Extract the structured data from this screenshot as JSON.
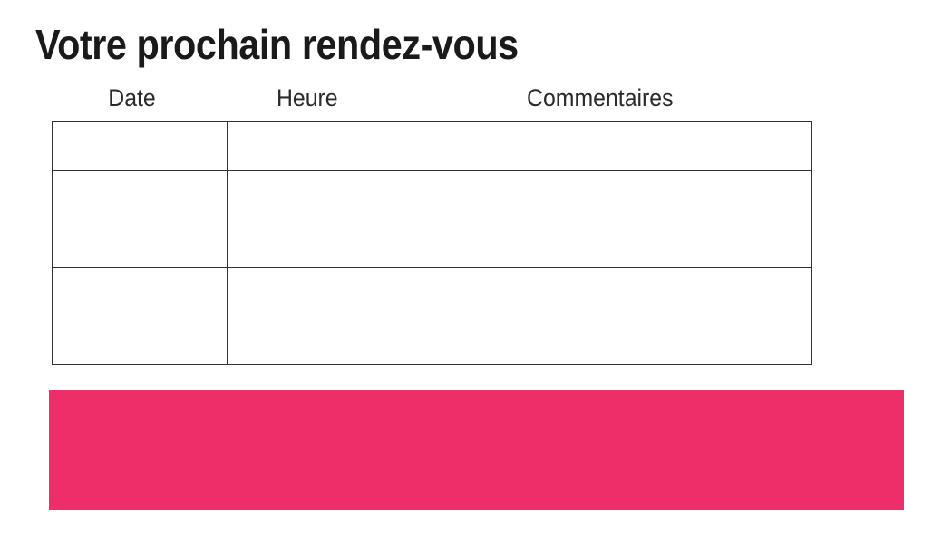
{
  "page": {
    "title": "Votre prochain rendez-vous"
  },
  "colors": {
    "accent_pink": "#ED2E68",
    "table_border": "#333333",
    "text": "#1A1A1A"
  },
  "appointments_table": {
    "columns": [
      {
        "label": "Date"
      },
      {
        "label": "Heure"
      },
      {
        "label": "Commentaires"
      }
    ],
    "row_count": 5,
    "rows": [
      {
        "date": "",
        "heure": "",
        "commentaires": ""
      },
      {
        "date": "",
        "heure": "",
        "commentaires": ""
      },
      {
        "date": "",
        "heure": "",
        "commentaires": ""
      },
      {
        "date": "",
        "heure": "",
        "commentaires": ""
      },
      {
        "date": "",
        "heure": "",
        "commentaires": ""
      }
    ]
  }
}
